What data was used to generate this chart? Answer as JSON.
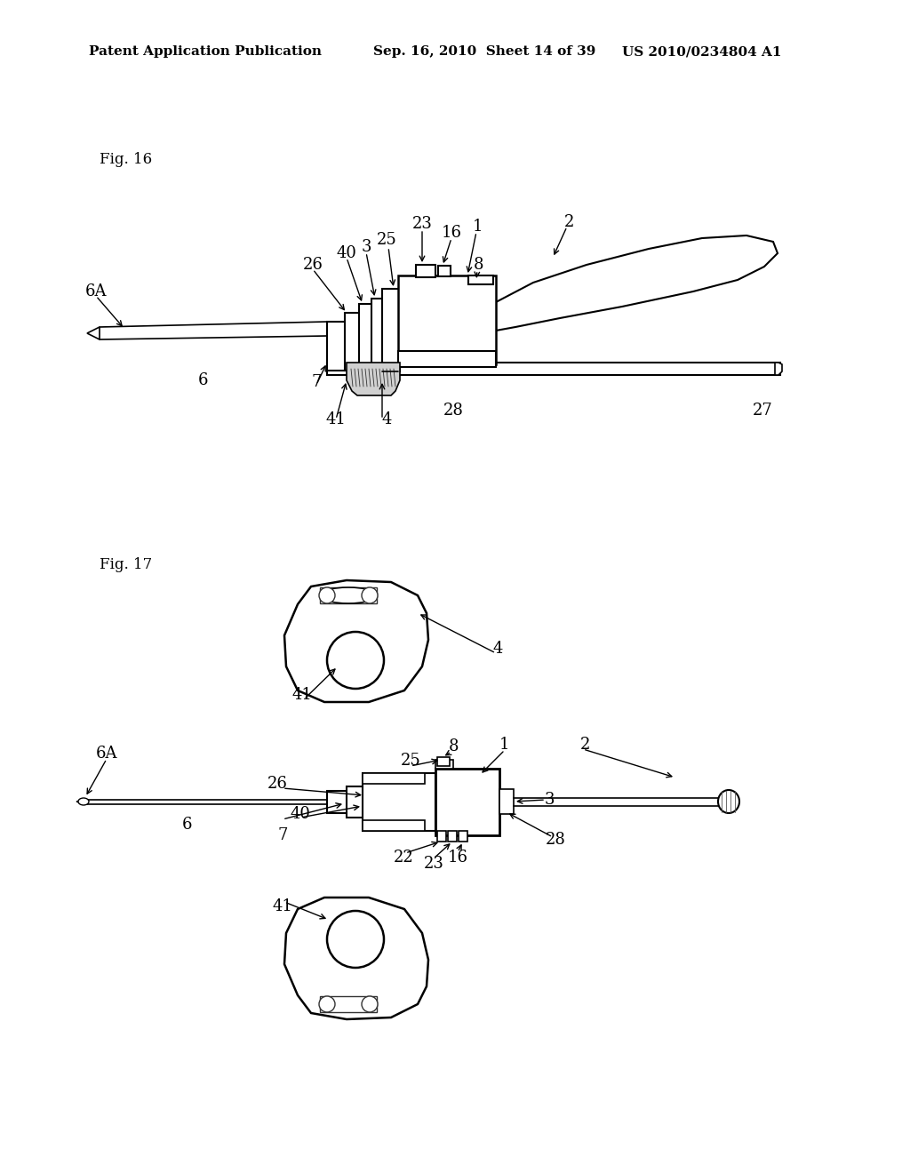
{
  "background_color": "#ffffff",
  "header_left": "Patent Application Publication",
  "header_mid": "Sep. 16, 2010  Sheet 14 of 39",
  "header_right": "US 2010/0234804 A1",
  "fig16_label": "Fig. 16",
  "fig17_label": "Fig. 17",
  "line_color": "#000000",
  "line_width": 1.5,
  "label_fontsize": 13,
  "header_fontsize": 11,
  "fig_label_fontsize": 12
}
